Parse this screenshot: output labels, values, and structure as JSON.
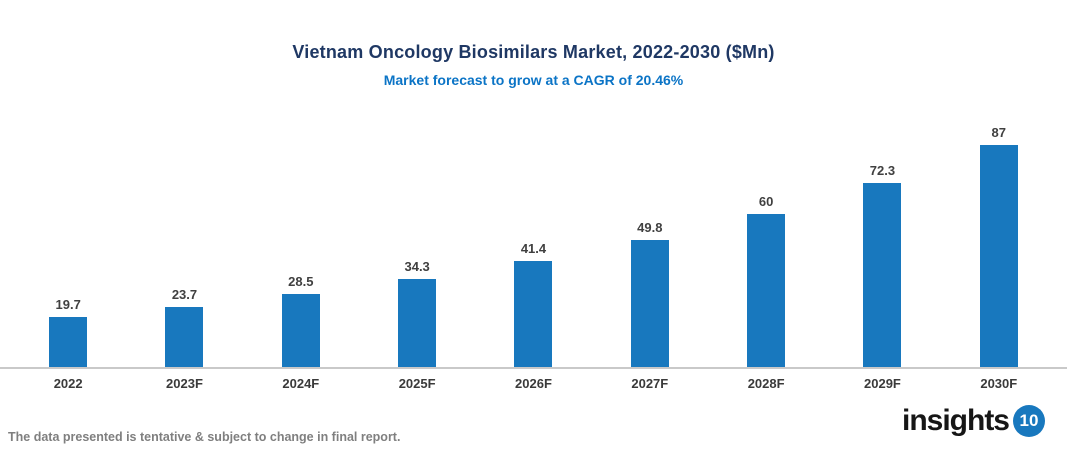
{
  "header": {
    "title": "Vietnam Oncology Biosimilars Market, 2022-2030 ($Mn)",
    "subtitle": "Market forecast to grow at a CAGR of 20.46%"
  },
  "chart_data": {
    "type": "bar",
    "title": "Vietnam Oncology Biosimilars Market, 2022-2030 ($Mn)",
    "subtitle": "Market forecast to grow at a CAGR of 20.46%",
    "categories": [
      "2022",
      "2023F",
      "2024F",
      "2025F",
      "2026F",
      "2027F",
      "2028F",
      "2029F",
      "2030F"
    ],
    "values": [
      19.7,
      23.7,
      28.5,
      34.3,
      41.4,
      49.8,
      60,
      72.3,
      87
    ],
    "value_labels": [
      "19.7",
      "23.7",
      "28.5",
      "34.3",
      "41.4",
      "49.8",
      "60",
      "72.3",
      "87"
    ],
    "xlabel": "",
    "ylabel": "",
    "ylim": [
      0,
      95
    ],
    "grid": false,
    "legend": false,
    "bar_color": "#1878BE",
    "cagr_percent": 20.46
  },
  "footer": {
    "note": "The data presented is tentative & subject to change in final report.",
    "logo_text": "insights",
    "logo_badge": "10"
  },
  "colors": {
    "title": "#1F3864",
    "subtitle": "#0B74C6",
    "bar": "#1878BE",
    "axis_line": "#C9C9C9",
    "footnote": "#7F7F7F"
  }
}
